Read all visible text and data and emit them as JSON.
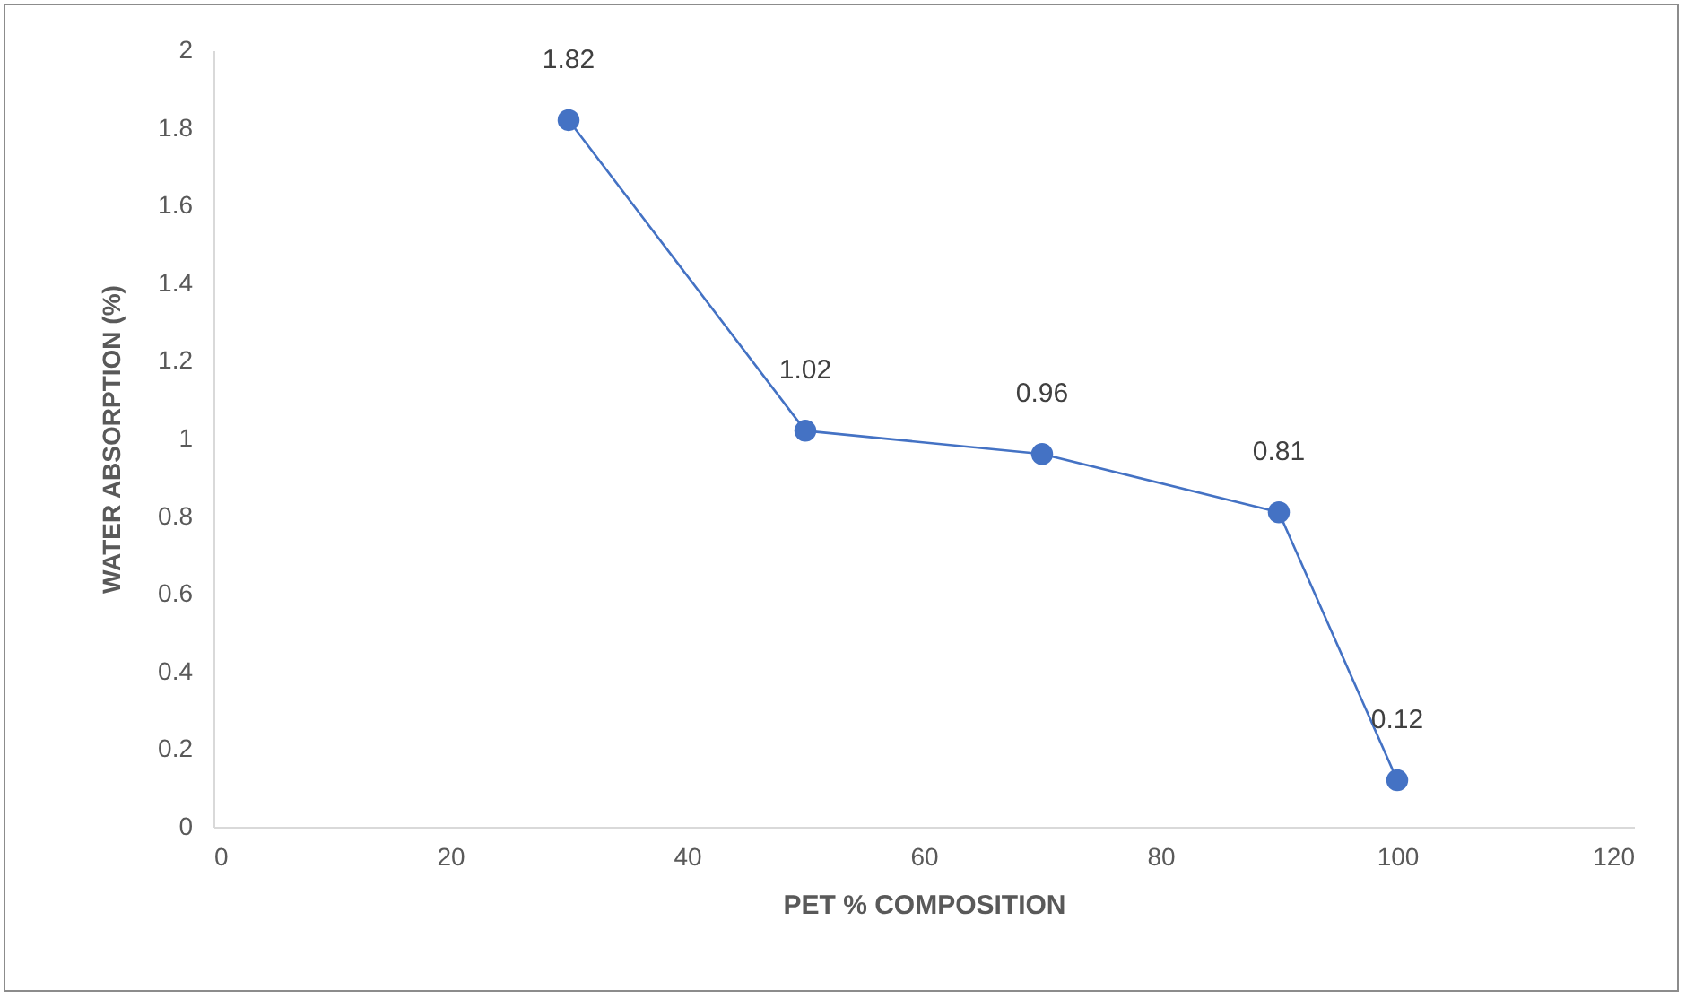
{
  "chart_data": {
    "type": "line",
    "xlabel": "PET % COMPOSITION",
    "ylabel": "WATER ABSORPTION (%)",
    "x": [
      30,
      50,
      70,
      90,
      100
    ],
    "series": [
      {
        "color": "#4472c4",
        "values": [
          1.82,
          1.02,
          0.96,
          0.81,
          0.12
        ]
      }
    ],
    "xlim": [
      0,
      120
    ],
    "xticks": [
      0,
      20,
      40,
      60,
      80,
      100,
      120
    ],
    "ylim": [
      0,
      2
    ],
    "yticks": [
      0,
      0.2,
      0.4,
      0.6,
      0.8,
      1,
      1.2,
      1.4,
      1.6,
      1.8,
      2
    ],
    "data_labels": true,
    "marker": "circle",
    "line_style": "solid",
    "grid": false
  }
}
